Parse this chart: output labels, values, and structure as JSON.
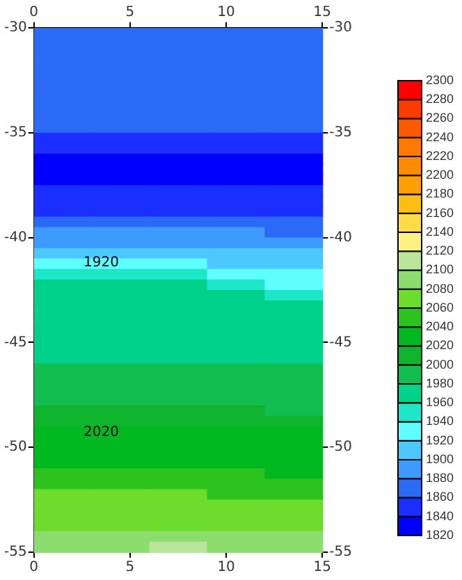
{
  "chart_data": {
    "type": "heatmap",
    "xlim": [
      0,
      15
    ],
    "xticks": [
      0,
      5,
      10,
      15
    ],
    "x2lim": [
      0,
      15
    ],
    "x2ticks": [
      0,
      5,
      10,
      15
    ],
    "ylim": [
      -55,
      -30
    ],
    "yticks": [
      -55,
      -50,
      -45,
      -40,
      -35,
      -30
    ],
    "y2lim": [
      -55,
      -30
    ],
    "y2ticks": [
      -55,
      -50,
      -45,
      -40,
      -35,
      -30
    ],
    "clim": [
      1820,
      2300
    ],
    "cticks": [
      1820,
      1840,
      1860,
      1880,
      1900,
      1920,
      1940,
      1960,
      1980,
      2000,
      2020,
      2040,
      2060,
      2080,
      2100,
      2120,
      2140,
      2160,
      2180,
      2200,
      2220,
      2240,
      2260,
      2280,
      2300
    ],
    "colors": [
      "#0000ff",
      "#1a2eff",
      "#2b6af5",
      "#3d9bff",
      "#4cc8ff",
      "#5fffff",
      "#1ee6c8",
      "#00d28c",
      "#12be50",
      "#0fb42d",
      "#00b920",
      "#2dc31e",
      "#6edc2d",
      "#8cdc6e",
      "#b9e69b",
      "#fff082",
      "#ffdc46",
      "#ffbe14",
      "#ffa000",
      "#ff8c00",
      "#ff7800",
      "#ff5a00",
      "#ff3c00",
      "#ff0000"
    ],
    "annotations": [
      "1920",
      "2020"
    ],
    "cells": [
      [
        1870,
        1870,
        1870,
        1870,
        1870
      ],
      [
        1870,
        1870,
        1870,
        1870,
        1870
      ],
      [
        1870,
        1870,
        1870,
        1870,
        1870
      ],
      [
        1870,
        1870,
        1870,
        1870,
        1870
      ],
      [
        1870,
        1870,
        1870,
        1870,
        1870
      ],
      [
        1870,
        1870,
        1870,
        1870,
        1870
      ],
      [
        1870,
        1870,
        1870,
        1870,
        1870
      ],
      [
        1870,
        1870,
        1870,
        1870,
        1870
      ],
      [
        1870,
        1870,
        1870,
        1870,
        1870
      ],
      [
        1870,
        1870,
        1870,
        1870,
        1870
      ],
      [
        1850,
        1850,
        1850,
        1850,
        1850
      ],
      [
        1850,
        1850,
        1850,
        1850,
        1850
      ],
      [
        1830,
        1830,
        1830,
        1830,
        1830
      ],
      [
        1830,
        1830,
        1830,
        1830,
        1830
      ],
      [
        1830,
        1830,
        1830,
        1830,
        1830
      ],
      [
        1850,
        1850,
        1850,
        1850,
        1850
      ],
      [
        1850,
        1850,
        1850,
        1850,
        1850
      ],
      [
        1850,
        1850,
        1850,
        1850,
        1850
      ],
      [
        1870,
        1870,
        1870,
        1870,
        1870
      ],
      [
        1890,
        1890,
        1890,
        1890,
        1870
      ],
      [
        1890,
        1890,
        1890,
        1890,
        1890
      ],
      [
        1910,
        1910,
        1910,
        1910,
        1910
      ],
      [
        1930,
        1930,
        1930,
        1910,
        1910
      ],
      [
        1950,
        1950,
        1950,
        1930,
        1930
      ],
      [
        1970,
        1970,
        1970,
        1950,
        1930
      ],
      [
        1970,
        1970,
        1970,
        1970,
        1950
      ],
      [
        1970,
        1970,
        1970,
        1970,
        1970
      ],
      [
        1970,
        1970,
        1970,
        1970,
        1970
      ],
      [
        1970,
        1970,
        1970,
        1970,
        1970
      ],
      [
        1970,
        1970,
        1970,
        1970,
        1970
      ],
      [
        1970,
        1970,
        1970,
        1970,
        1970
      ],
      [
        1970,
        1970,
        1970,
        1970,
        1970
      ],
      [
        1990,
        1990,
        1990,
        1990,
        1990
      ],
      [
        1990,
        1990,
        1990,
        1990,
        1990
      ],
      [
        1990,
        1990,
        1990,
        1990,
        1990
      ],
      [
        1990,
        1990,
        1990,
        1990,
        1990
      ],
      [
        2010,
        2010,
        2010,
        2010,
        1990
      ],
      [
        2010,
        2010,
        2010,
        2010,
        2010
      ],
      [
        2030,
        2030,
        2030,
        2030,
        2030
      ],
      [
        2030,
        2030,
        2030,
        2030,
        2030
      ],
      [
        2030,
        2030,
        2030,
        2030,
        2030
      ],
      [
        2030,
        2030,
        2030,
        2030,
        2030
      ],
      [
        2050,
        2050,
        2050,
        2050,
        2030
      ],
      [
        2050,
        2050,
        2050,
        2050,
        2050
      ],
      [
        2070,
        2070,
        2070,
        2050,
        2050
      ],
      [
        2070,
        2070,
        2070,
        2070,
        2070
      ],
      [
        2070,
        2070,
        2070,
        2070,
        2070
      ],
      [
        2070,
        2070,
        2070,
        2070,
        2070
      ],
      [
        2090,
        2090,
        2090,
        2090,
        2090
      ],
      [
        2090,
        2090,
        2110,
        2090,
        2090
      ]
    ]
  }
}
